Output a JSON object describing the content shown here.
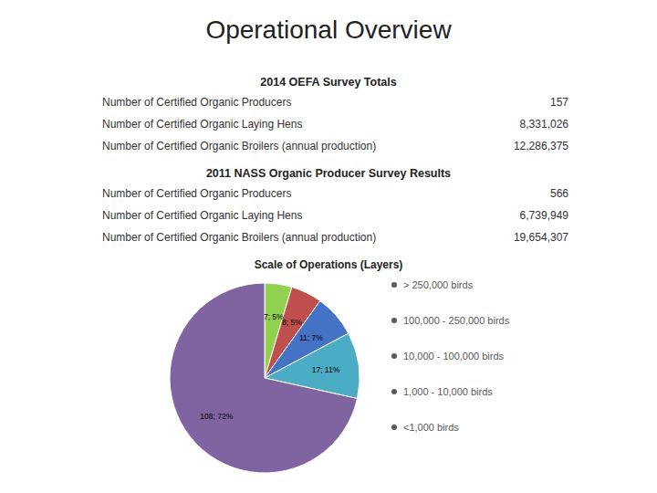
{
  "title": "Operational Overview",
  "sections": [
    {
      "header": "2014 OEFA Survey Totals",
      "rows": [
        {
          "label": "Number of Certified Organic Producers",
          "value": "157"
        },
        {
          "label": "Number of Certified Organic Laying Hens",
          "value": "8,331,026"
        },
        {
          "label": "Number of Certified Organic Broilers (annual production)",
          "value": "12,286,375"
        }
      ]
    },
    {
      "header": "2011 NASS Organic Producer Survey Results",
      "rows": [
        {
          "label": "Number of Certified Organic Producers",
          "value": "566"
        },
        {
          "label": "Number of Certified Organic Laying Hens",
          "value": "6,739,949"
        },
        {
          "label": "Number of Certified Organic Broilers (annual production)",
          "value": "19,654,307"
        }
      ]
    }
  ],
  "chart_data": {
    "type": "pie",
    "title": "Scale of Operations (Layers)",
    "categories": [
      "> 250,000 birds",
      "100,000 - 250,000 birds",
      "10,000 - 100,000 birds",
      "1,000 - 10,000 birds",
      "<1,000 birds"
    ],
    "values": [
      7,
      8,
      11,
      17,
      108
    ],
    "value_labels": [
      "7; 5%",
      "8; 5%",
      "11; 7%",
      "17; 11%",
      "108; 72%"
    ],
    "colors": [
      "#92d050",
      "#c0504d",
      "#4472c4",
      "#4bacc6",
      "#8064a2"
    ],
    "data_labels": true,
    "legend": "right"
  }
}
